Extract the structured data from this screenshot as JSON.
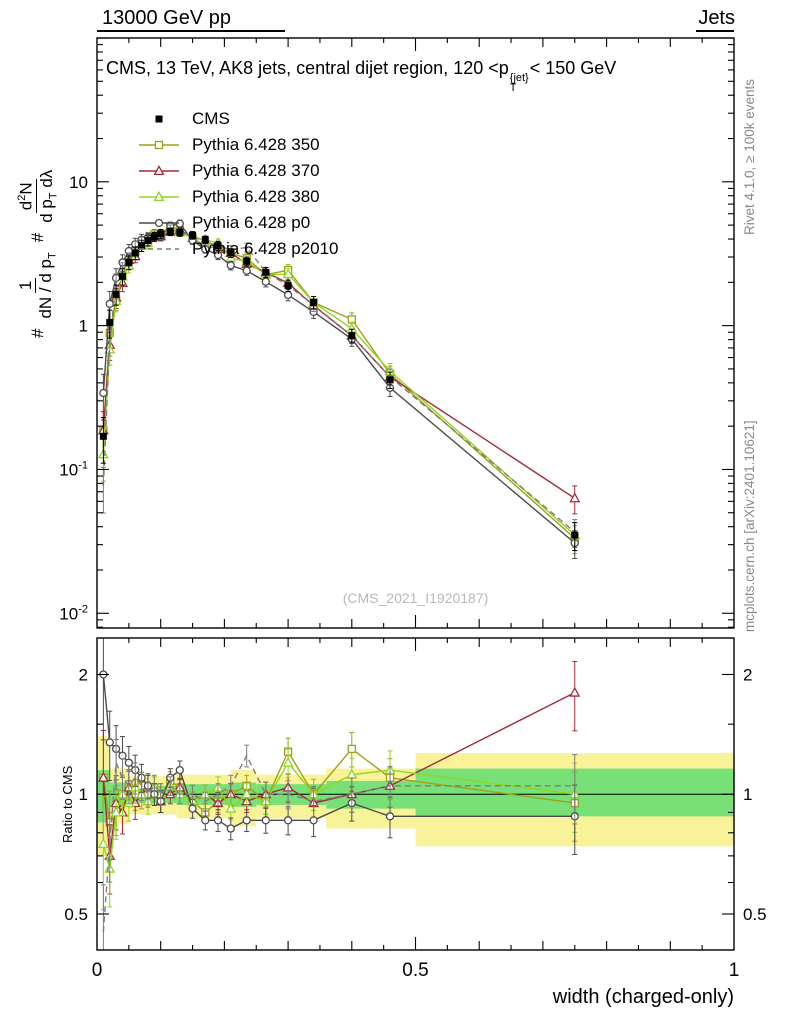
{
  "header": {
    "left": "13000 GeV pp",
    "right": "Jets"
  },
  "title": {
    "pre": "CMS, 13 TeV, AK8 jets, central dijet region, 120 <",
    "sym": "p",
    "sup": "{jet}",
    "sub": "T",
    "post": "< 150 GeV"
  },
  "ylabel": {
    "hash1": "#",
    "f1num": "1",
    "f1den": {
      "pre": "dN / d p",
      "sub": "T"
    },
    "hash2": "#",
    "f2num": {
      "pre": "d",
      "sup": "2",
      "post": "N"
    },
    "f2den": {
      "pre": "d p",
      "sub": "T",
      "post": " dλ"
    }
  },
  "ratio_ylabel": "Ratio to CMS",
  "xlabel": "width (charged-only)",
  "watermark": "(CMS_2021_I1920187)",
  "side_notes": {
    "top": "Rivet 4.1.0, ≥ 100k events",
    "bottom": "mcplots.cern.ch [arXiv:2401.10621]"
  },
  "chart_data": {
    "type": "line",
    "title": "CMS, 13 TeV, AK8 jets, central dijet region, 120 < pT^{jet} < 150 GeV",
    "xlabel": "width (charged-only)",
    "ylabel": "# 1/(dN/dpT) # d2N/(dpT dlambda)",
    "ratio_label": "Ratio to CMS",
    "xlim": [
      0,
      1
    ],
    "main_ylim": [
      0.0079,
      100
    ],
    "ratio_ylim": [
      0.406,
      2.47
    ],
    "x": [
      0.01,
      0.02,
      0.03,
      0.04,
      0.05,
      0.06,
      0.07,
      0.08,
      0.09,
      0.1,
      0.115,
      0.13,
      0.15,
      0.17,
      0.19,
      0.21,
      0.235,
      0.265,
      0.3,
      0.34,
      0.4,
      0.46,
      0.75
    ],
    "rel_err": [
      0.35,
      0.22,
      0.16,
      0.13,
      0.11,
      0.1,
      0.09,
      0.08,
      0.07,
      0.07,
      0.06,
      0.06,
      0.06,
      0.06,
      0.07,
      0.07,
      0.07,
      0.08,
      0.09,
      0.1,
      0.11,
      0.13,
      0.22
    ],
    "series": [
      {
        "name": "CMS",
        "is_data": true,
        "color": "#000000",
        "marker": "square-filled",
        "line": "none",
        "values": [
          0.17,
          1.05,
          1.65,
          2.2,
          2.75,
          3.2,
          3.6,
          3.9,
          4.15,
          4.35,
          4.5,
          4.45,
          4.25,
          3.95,
          3.6,
          3.2,
          2.8,
          2.35,
          1.9,
          1.45,
          0.85,
          0.42,
          0.035
        ]
      },
      {
        "name": "Pythia 6.428 350",
        "color": "#a0a018",
        "marker": "square-open",
        "line": "solid",
        "ratio_to_cms": [
          1.1,
          0.85,
          0.92,
          1.0,
          1.04,
          1.0,
          1.05,
          1.0,
          1.04,
          1.0,
          1.08,
          1.04,
          0.96,
          0.9,
          0.96,
          1.0,
          1.05,
          0.96,
          1.28,
          1.0,
          1.3,
          1.1,
          0.95
        ]
      },
      {
        "name": "Pythia 6.428 370",
        "color": "#a42a3a",
        "marker": "triangle-open",
        "line": "solid",
        "ratio_to_cms": [
          1.1,
          0.7,
          0.95,
          0.9,
          1.04,
          0.95,
          1.0,
          1.04,
          1.0,
          0.96,
          1.0,
          1.04,
          0.96,
          1.0,
          0.95,
          1.0,
          0.96,
          1.0,
          1.04,
          0.95,
          1.0,
          1.05,
          1.8
        ]
      },
      {
        "name": "Pythia 6.428 380",
        "color": "#8ed71e",
        "marker": "triangle-open",
        "line": "solid",
        "ratio_to_cms": [
          0.75,
          0.65,
          0.9,
          1.0,
          0.95,
          1.04,
          1.0,
          0.96,
          1.04,
          1.0,
          1.05,
          1.0,
          0.96,
          1.0,
          1.04,
          0.92,
          1.0,
          0.96,
          1.2,
          1.0,
          1.12,
          1.15,
          1.0
        ]
      },
      {
        "name": "Pythia 6.428 p0",
        "color": "#4a4a4a",
        "marker": "circle-open",
        "line": "solid",
        "ratio_to_cms": [
          2.0,
          1.35,
          1.3,
          1.25,
          1.2,
          1.15,
          1.1,
          1.05,
          1.0,
          0.96,
          1.1,
          1.15,
          0.92,
          0.86,
          0.86,
          0.82,
          0.86,
          0.86,
          0.86,
          0.86,
          0.95,
          0.88,
          0.88
        ]
      },
      {
        "name": "Pythia 6.428 p2010",
        "color": "#7d7d7d",
        "marker": "none",
        "line": "dashed",
        "ratio_to_cms": [
          0.45,
          0.75,
          1.2,
          1.1,
          1.05,
          1.1,
          1.05,
          1.0,
          1.05,
          1.0,
          1.05,
          1.0,
          1.0,
          0.96,
          1.0,
          1.05,
          1.25,
          1.0,
          1.0,
          0.96,
          1.0,
          1.05,
          1.05
        ]
      }
    ],
    "bands": [
      {
        "x0": 0.0,
        "x1": 0.02,
        "yellow": [
          0.7,
          1.4
        ],
        "green": [
          0.85,
          1.15
        ]
      },
      {
        "x0": 0.02,
        "x1": 0.05,
        "yellow": [
          0.84,
          1.16
        ],
        "green": [
          0.93,
          1.07
        ]
      },
      {
        "x0": 0.05,
        "x1": 0.125,
        "yellow": [
          0.89,
          1.11
        ],
        "green": [
          0.95,
          1.05
        ]
      },
      {
        "x0": 0.125,
        "x1": 0.21,
        "yellow": [
          0.87,
          1.12
        ],
        "green": [
          0.94,
          1.06
        ]
      },
      {
        "x0": 0.21,
        "x1": 0.25,
        "yellow": [
          0.83,
          1.15
        ],
        "green": [
          0.93,
          1.07
        ]
      },
      {
        "x0": 0.25,
        "x1": 0.36,
        "yellow": [
          0.87,
          1.12
        ],
        "green": [
          0.94,
          1.06
        ]
      },
      {
        "x0": 0.36,
        "x1": 0.5,
        "yellow": [
          0.82,
          1.16
        ],
        "green": [
          0.92,
          1.08
        ]
      },
      {
        "x0": 0.5,
        "x1": 1.0,
        "yellow": [
          0.74,
          1.27
        ],
        "green": [
          0.88,
          1.16
        ]
      }
    ],
    "band_colors": {
      "yellow": "#f8f398",
      "green": "#77e077"
    },
    "ratio_reference_line": 1,
    "main_yticks": [
      {
        "v": 10,
        "t": "10"
      },
      {
        "v": 1,
        "t": "1"
      },
      {
        "v": 0.1,
        "t": "10",
        "e": "-1"
      },
      {
        "v": 0.01,
        "t": "10",
        "e": "-2"
      }
    ],
    "ratio_yticks": [
      {
        "v": 2,
        "t": "2"
      },
      {
        "v": 1,
        "t": "1"
      },
      {
        "v": 0.5,
        "t": "0.5"
      }
    ],
    "ratio_minor_ticks": [
      0.6,
      0.7,
      0.8,
      0.9,
      1.5
    ],
    "xticks": [
      {
        "v": 0,
        "t": "0"
      },
      {
        "v": 0.5,
        "t": "0.5"
      },
      {
        "v": 1,
        "t": "1"
      }
    ]
  }
}
